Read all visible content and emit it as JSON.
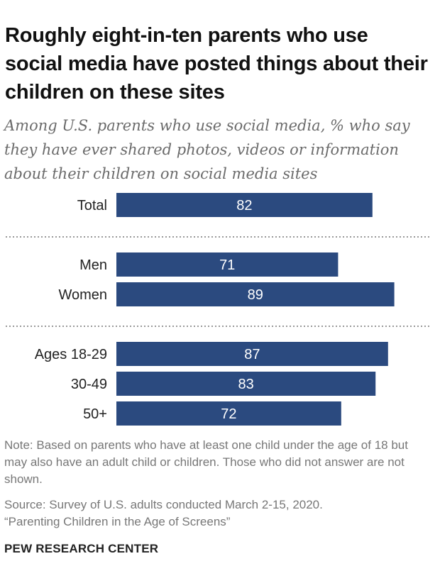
{
  "title": "Roughly eight-in-ten parents who use social media have posted things about their children on these sites",
  "subtitle": "Among U.S. parents who use social media, % who say they have ever shared photos, videos or information about their children on social media sites",
  "note": "Note: Based on parents who have at least one child under the age of 18 but may also have an adult child or children. Those who did not answer are not shown.",
  "source_line1": "Source: Survey of U.S. adults conducted March 2-15, 2020.",
  "source_line2": "“Parenting Children in the Age of Screens”",
  "brand": "PEW RESEARCH CENTER",
  "colors": {
    "bar": "#2b4a7f",
    "divider": "#999999"
  },
  "chart_data": {
    "type": "bar",
    "orientation": "horizontal",
    "groups": [
      {
        "categories": [
          "Total"
        ],
        "values": [
          82
        ]
      },
      {
        "categories": [
          "Men",
          "Women"
        ],
        "values": [
          71,
          89
        ]
      },
      {
        "categories": [
          "Ages 18-29",
          "30-49",
          "50+"
        ],
        "values": [
          87,
          83,
          72
        ]
      }
    ],
    "xlim": [
      0,
      100
    ],
    "grid": false,
    "legend": "none"
  }
}
